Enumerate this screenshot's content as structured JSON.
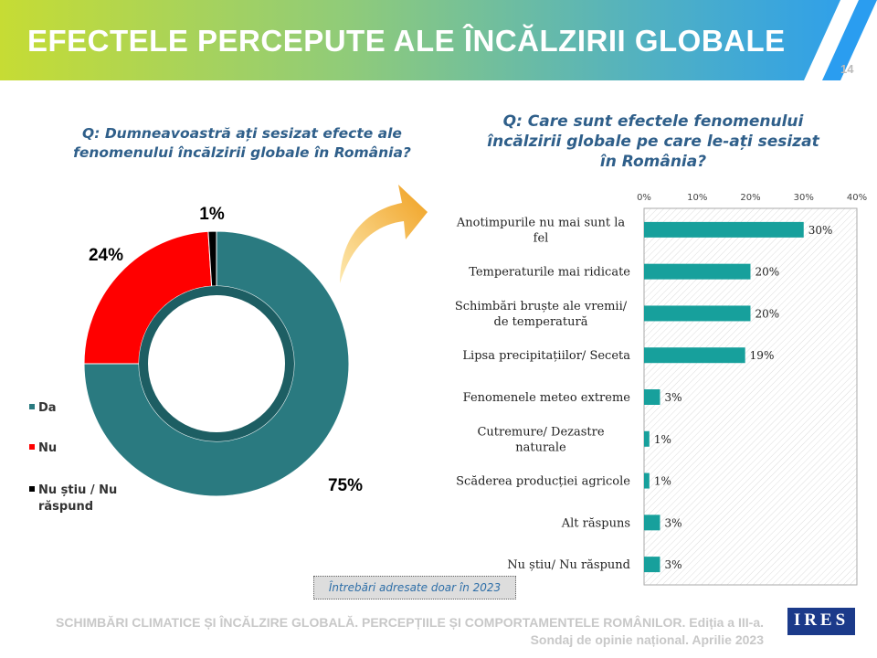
{
  "header": {
    "title": "EFECTELE PERCEPUTE ALE ÎNCĂLZIRII GLOBALE",
    "page_number": "14"
  },
  "left_question": "Q: Dumneavoastră ați sesizat efecte ale fenomenului încălzirii globale în România?",
  "right_question": "Q: Care sunt efectele fenomenului încălzirii globale pe care le-ați sesizat în România?",
  "note": "Întrebări adresate doar în 2023",
  "footer": {
    "line1": "SCHIMBĂRI CLIMATICE ȘI ÎNCĂLZIRE GLOBALĂ. PERCEPȚIILE ȘI COMPORTAMENTELE ROMÂNILOR. Ediția a III-a.",
    "line2": "Sondaj de opinie național. Aprilie 2023",
    "logo": "IRES"
  },
  "chart_data": [
    {
      "type": "pie",
      "subtype": "donut",
      "categories": [
        "Da",
        "Nu",
        "Nu știu / Nu răspund"
      ],
      "values": [
        75,
        24,
        1
      ],
      "labels": [
        "75%",
        "24%",
        "1%"
      ],
      "colors": [
        "#2a7a80",
        "#ff0000",
        "#000000"
      ],
      "legend": "left"
    },
    {
      "type": "bar",
      "orientation": "horizontal",
      "categories": [
        "Anotimpurile nu mai sunt la fel",
        "Temperaturile mai ridicate",
        "Schimbări bruște ale vremii/ de temperatură",
        "Lipsa precipitațiilor/ Seceta",
        "Fenomenele meteo extreme",
        "Cutremure/ Dezastre naturale",
        "Scăderea producției agricole",
        "Alt răspuns",
        "Nu știu/ Nu răspund"
      ],
      "values": [
        30,
        20,
        20,
        19,
        3,
        1,
        1,
        3,
        3
      ],
      "labels": [
        "30%",
        "20%",
        "20%",
        "19%",
        "3%",
        "1%",
        "1%",
        "3%",
        "3%"
      ],
      "xlim": [
        0,
        40
      ],
      "ticks": [
        "0%",
        "10%",
        "20%",
        "30%",
        "40%"
      ],
      "color": "#17a09c",
      "axis_position": "top"
    }
  ]
}
